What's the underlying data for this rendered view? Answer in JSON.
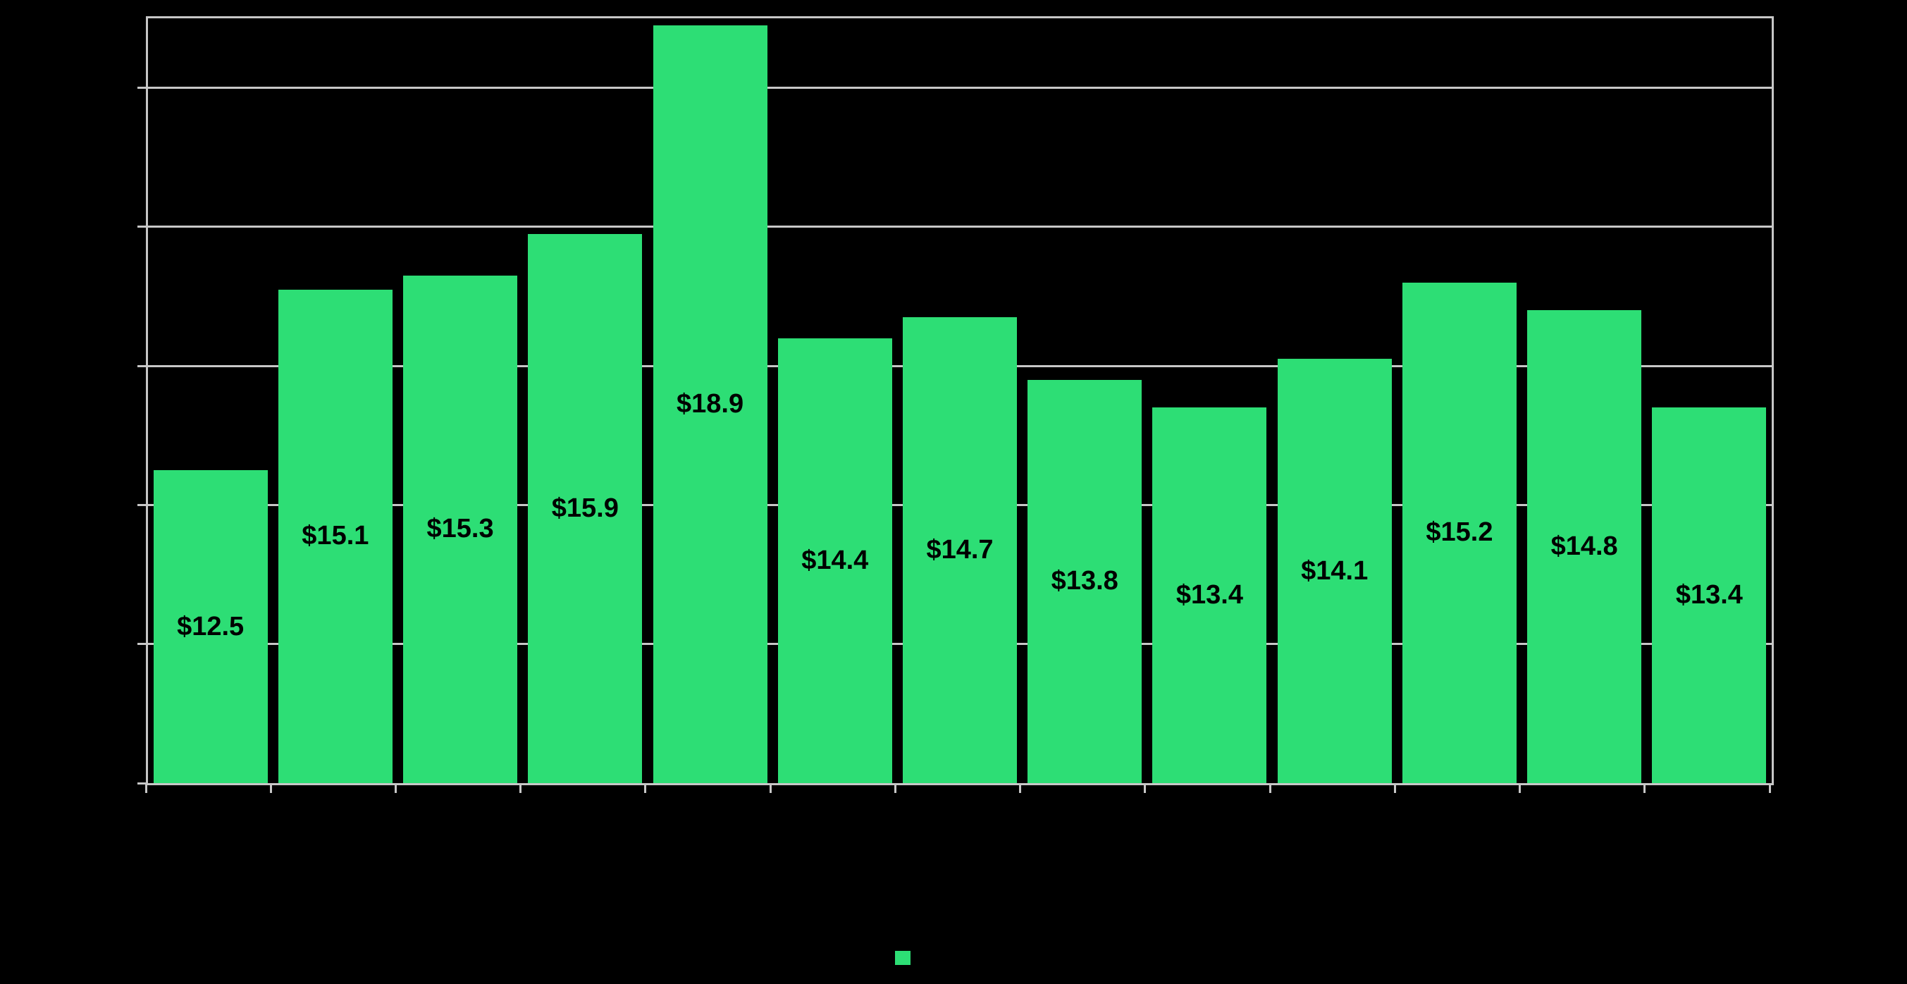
{
  "chart_data": {
    "type": "bar",
    "title": "",
    "xlabel": "",
    "ylabel": "",
    "series_count": 1,
    "values": [
      12.5,
      15.1,
      15.3,
      15.9,
      18.9,
      14.4,
      14.7,
      13.8,
      13.4,
      14.1,
      15.2,
      14.8,
      13.4
    ],
    "data_labels": [
      "$12.5",
      "$15.1",
      "$15.3",
      "$15.9",
      "$18.9",
      "$14.4",
      "$14.7",
      "$13.8",
      "$13.4",
      "$14.1",
      "$15.2",
      "$14.8",
      "$13.4"
    ],
    "data_label_position": "center-of-bar",
    "ylim": [
      8,
      19
    ],
    "yticks": [
      10,
      12,
      14,
      16,
      18
    ],
    "grid": true,
    "gridline_orientation": "horizontal",
    "plot_border": true,
    "legend": {
      "position": "bottom-center",
      "marker_shape": "square",
      "marker_color": "#2DDE75",
      "label": ""
    },
    "colors": {
      "bar": "#2DDE75",
      "grid": "#C7C7C7",
      "axis": "#C7C7C7",
      "data_label": "#000000",
      "background": "#000000"
    }
  }
}
